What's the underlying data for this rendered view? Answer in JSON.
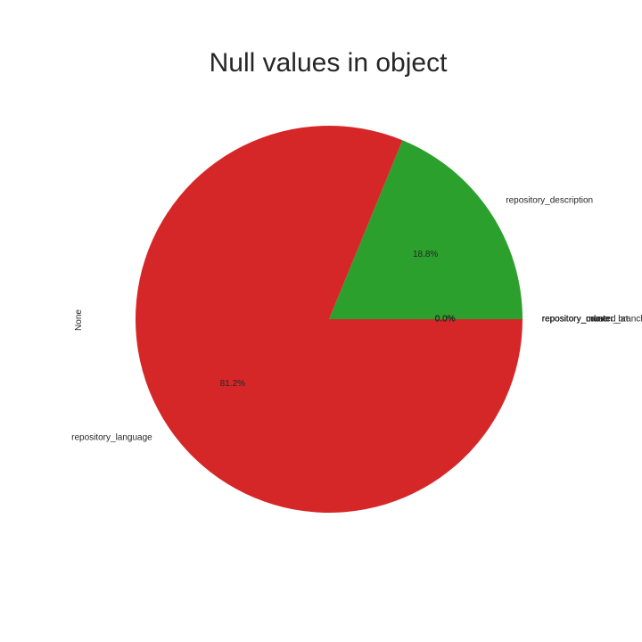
{
  "chart_data": {
    "type": "pie",
    "title": "Null values in object",
    "ylabel": "None",
    "categories": [
      "repository_created_at",
      "repository_description",
      "repository_language",
      "repository_name",
      "repository_owner",
      "repository_url",
      "repository_master_branch"
    ],
    "values": [
      0.0,
      18.8,
      81.2,
      0.0,
      0.0,
      0.0,
      0.0
    ],
    "percent_labels": [
      "0.0%",
      "18.8%",
      "81.2%",
      "0.0%",
      "0.0%",
      "0.0%",
      "0.0%"
    ],
    "colors": [
      "#1f77b4",
      "#2ca02c",
      "#d62728",
      "#ff7f0e",
      "#9467bd",
      "#8c564b",
      "#e377c2"
    ],
    "start_angle": 0,
    "counterclock": true
  }
}
